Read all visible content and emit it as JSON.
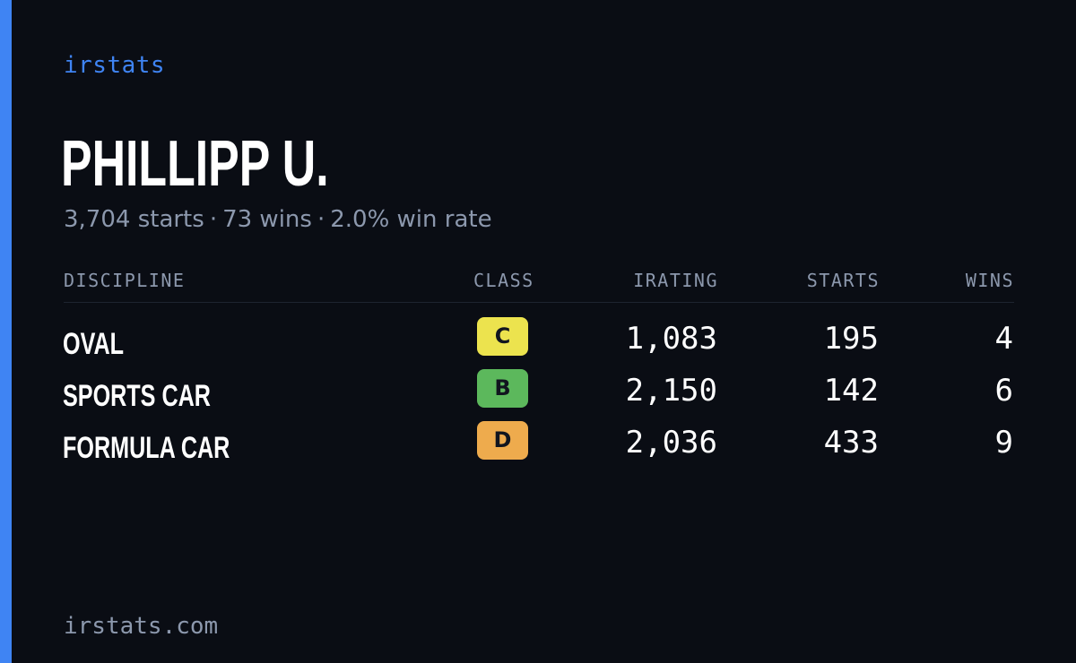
{
  "brand": "irstats",
  "player": {
    "name": "PHILLIPP U.",
    "summary": {
      "starts": "3,704 starts",
      "wins": "73 wins",
      "win_rate": "2.0% win rate",
      "separator": "·"
    }
  },
  "table": {
    "headers": {
      "discipline": "DISCIPLINE",
      "class": "CLASS",
      "irating": "IRATING",
      "starts": "STARTS",
      "wins": "WINS"
    },
    "rows": [
      {
        "discipline": "OVAL",
        "class": "C",
        "class_color": "#ece34e",
        "irating": "1,083",
        "starts": "195",
        "wins": "4"
      },
      {
        "discipline": "SPORTS CAR",
        "class": "B",
        "class_color": "#5cb85c",
        "irating": "2,150",
        "starts": "142",
        "wins": "6"
      },
      {
        "discipline": "FORMULA CAR",
        "class": "D",
        "class_color": "#eeab4d",
        "irating": "2,036",
        "starts": "433",
        "wins": "9"
      }
    ]
  },
  "footer": {
    "url": "irstats.com"
  },
  "colors": {
    "accent": "#3f84f3",
    "background": "#0a0d14",
    "muted_text": "#8c98ad"
  }
}
